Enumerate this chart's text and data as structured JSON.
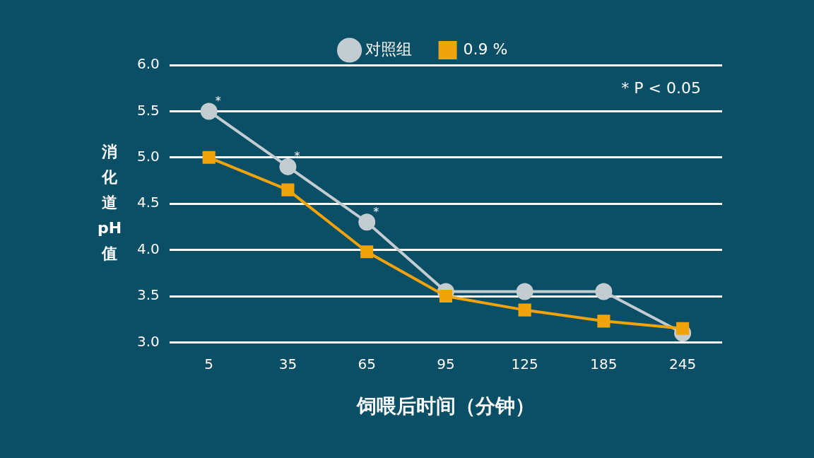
{
  "chart_data": {
    "type": "line",
    "xlabel": "饲喂后时间（分钟）",
    "ylabel": "消化道pH值",
    "categories": [
      "5",
      "35",
      "65",
      "95",
      "125",
      "185",
      "245"
    ],
    "series": [
      {
        "name": "对照组",
        "color": "#c3ccd0",
        "marker": "circle",
        "values": [
          5.5,
          4.9,
          4.3,
          3.55,
          3.55,
          3.55,
          3.1
        ]
      },
      {
        "name": "0.9 %",
        "color": "#f0a30a",
        "marker": "square",
        "values": [
          5.0,
          4.65,
          3.98,
          3.5,
          3.35,
          3.23,
          3.15
        ]
      }
    ],
    "ylim": [
      3.0,
      6.0
    ],
    "yticks": [
      {
        "value": 3,
        "label": "3.0"
      },
      3.5,
      {
        "value": 4,
        "label": "4.0"
      },
      4.5,
      {
        "value": 5,
        "label": "5.0"
      },
      5.5,
      {
        "value": 6,
        "label": "6.0"
      }
    ],
    "grid": "y",
    "legend": "top right",
    "line_style": "solid",
    "annotations": [
      {
        "text": "*",
        "x": "5",
        "y": 5.5
      },
      {
        "text": "*",
        "x": "35",
        "y": 4.9
      },
      {
        "text": "*",
        "x": "65",
        "y": 4.3
      },
      "* P < 0.05"
    ]
  }
}
